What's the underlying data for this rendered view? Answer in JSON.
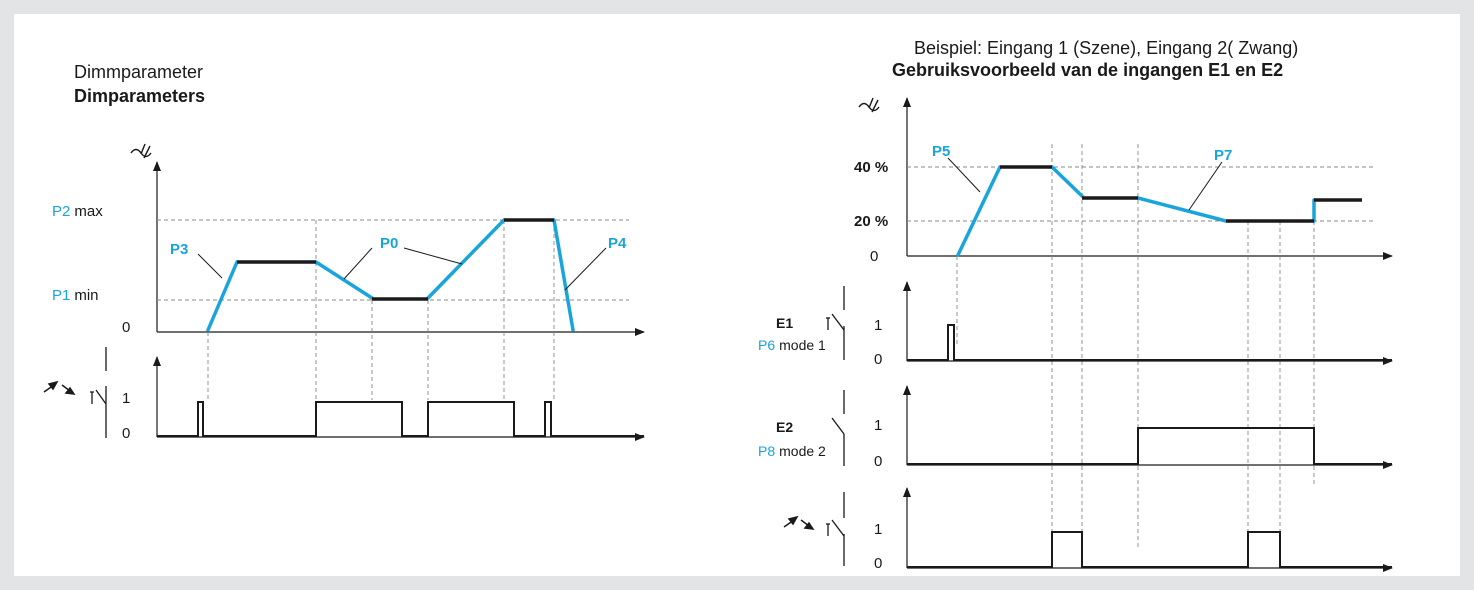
{
  "colors": {
    "accent": "#1aa4dc",
    "line": "#1a1a1a",
    "dash": "#888888",
    "frame_border": "#e3e4e5"
  },
  "icons": [
    "dimmer-symbol-icon",
    "push-button-icon",
    "switch-icon",
    "arrow-icon"
  ],
  "left": {
    "title": "Dimmparameter",
    "subtitle": "Dimparameters",
    "p2": "P2",
    "max": "max",
    "p1": "P1",
    "min": "min",
    "p3": "P3",
    "p0": "P0",
    "p4": "P4",
    "zero": "0",
    "one": "1",
    "zero_pulse": "0"
  },
  "right": {
    "title": "Beispiel: Eingang 1 (Szene), Eingang 2( Zwang)",
    "subtitle": "Gebruiksvoorbeeld van de ingangen E1 en E2",
    "p40": "40 %",
    "p20": "20 %",
    "zero": "0",
    "p5": "P5",
    "p7": "P7",
    "e1": "E1",
    "p6": "P6",
    "mode1": "mode 1",
    "e2": "E2",
    "p8": "P8",
    "mode2": "mode 2",
    "one": "1",
    "zero_e1": "0",
    "one_e2": "1",
    "zero_e2": "0",
    "one_pb": "1",
    "zero_pb": "0"
  }
}
